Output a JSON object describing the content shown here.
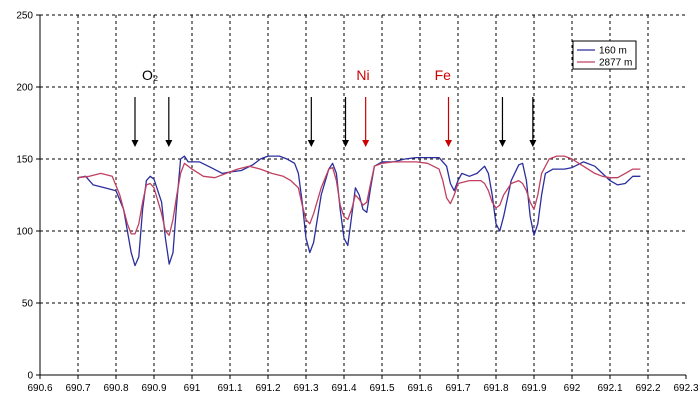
{
  "chart_data": {
    "type": "line",
    "xlim": [
      690.6,
      692.3
    ],
    "ylim": [
      0,
      250
    ],
    "grid": true,
    "legend_position": "top-right",
    "x_ticks": [
      "690.6",
      "690.7",
      "690.8",
      "690.9",
      "691",
      "691.1",
      "691.2",
      "691.3",
      "691.4",
      "691.5",
      "691.6",
      "691.7",
      "691.8",
      "691.9",
      "692",
      "692.1",
      "692.2",
      "692.3"
    ],
    "y_ticks": [
      "0",
      "50",
      "100",
      "150",
      "200",
      "250"
    ],
    "series": [
      {
        "name": "160 m",
        "color": "#2b2f9e",
        "points": [
          [
            690.7,
            137
          ],
          [
            690.72,
            138
          ],
          [
            690.74,
            132
          ],
          [
            690.77,
            130
          ],
          [
            690.8,
            128
          ],
          [
            690.82,
            115
          ],
          [
            690.84,
            85
          ],
          [
            690.85,
            76
          ],
          [
            690.86,
            82
          ],
          [
            690.87,
            115
          ],
          [
            690.88,
            135
          ],
          [
            690.89,
            138
          ],
          [
            690.9,
            136
          ],
          [
            690.92,
            120
          ],
          [
            690.93,
            95
          ],
          [
            690.94,
            77
          ],
          [
            690.95,
            85
          ],
          [
            690.96,
            120
          ],
          [
            690.97,
            150
          ],
          [
            690.98,
            152
          ],
          [
            690.99,
            148
          ],
          [
            691.02,
            148
          ],
          [
            691.05,
            144
          ],
          [
            691.08,
            140
          ],
          [
            691.1,
            141
          ],
          [
            691.13,
            142
          ],
          [
            691.16,
            146
          ],
          [
            691.18,
            150
          ],
          [
            691.2,
            152
          ],
          [
            691.23,
            152
          ],
          [
            691.25,
            150
          ],
          [
            691.27,
            147
          ],
          [
            691.28,
            140
          ],
          [
            691.29,
            120
          ],
          [
            691.3,
            95
          ],
          [
            691.31,
            85
          ],
          [
            691.32,
            92
          ],
          [
            691.34,
            125
          ],
          [
            691.36,
            143
          ],
          [
            691.37,
            147
          ],
          [
            691.38,
            140
          ],
          [
            691.39,
            115
          ],
          [
            691.4,
            95
          ],
          [
            691.41,
            90
          ],
          [
            691.42,
            110
          ],
          [
            691.43,
            130
          ],
          [
            691.44,
            125
          ],
          [
            691.45,
            115
          ],
          [
            691.46,
            113
          ],
          [
            691.47,
            130
          ],
          [
            691.48,
            145
          ],
          [
            691.5,
            148
          ],
          [
            691.53,
            148
          ],
          [
            691.56,
            150
          ],
          [
            691.59,
            151
          ],
          [
            691.62,
            151
          ],
          [
            691.65,
            151
          ],
          [
            691.67,
            145
          ],
          [
            691.68,
            133
          ],
          [
            691.69,
            128
          ],
          [
            691.7,
            135
          ],
          [
            691.71,
            140
          ],
          [
            691.73,
            138
          ],
          [
            691.75,
            140
          ],
          [
            691.77,
            145
          ],
          [
            691.78,
            140
          ],
          [
            691.79,
            125
          ],
          [
            691.8,
            105
          ],
          [
            691.81,
            100
          ],
          [
            691.82,
            110
          ],
          [
            691.84,
            135
          ],
          [
            691.86,
            146
          ],
          [
            691.87,
            147
          ],
          [
            691.88,
            135
          ],
          [
            691.89,
            110
          ],
          [
            691.9,
            97
          ],
          [
            691.91,
            105
          ],
          [
            691.92,
            125
          ],
          [
            691.93,
            140
          ],
          [
            691.95,
            143
          ],
          [
            691.98,
            143
          ],
          [
            692.0,
            144
          ],
          [
            692.03,
            148
          ],
          [
            692.06,
            145
          ],
          [
            692.08,
            140
          ],
          [
            692.1,
            135
          ],
          [
            692.12,
            132
          ],
          [
            692.14,
            133
          ],
          [
            692.16,
            138
          ],
          [
            692.18,
            138
          ]
        ]
      },
      {
        "name": "2877 m",
        "color": "#c04060",
        "points": [
          [
            690.7,
            137
          ],
          [
            690.73,
            138
          ],
          [
            690.76,
            140
          ],
          [
            690.79,
            138
          ],
          [
            690.81,
            125
          ],
          [
            690.83,
            105
          ],
          [
            690.84,
            98
          ],
          [
            690.85,
            98
          ],
          [
            690.86,
            105
          ],
          [
            690.87,
            120
          ],
          [
            690.88,
            132
          ],
          [
            690.89,
            133
          ],
          [
            690.9,
            130
          ],
          [
            690.92,
            112
          ],
          [
            690.93,
            100
          ],
          [
            690.94,
            97
          ],
          [
            690.95,
            108
          ],
          [
            690.96,
            125
          ],
          [
            690.97,
            140
          ],
          [
            690.98,
            147
          ],
          [
            691.0,
            143
          ],
          [
            691.03,
            138
          ],
          [
            691.06,
            137
          ],
          [
            691.09,
            140
          ],
          [
            691.12,
            143
          ],
          [
            691.15,
            145
          ],
          [
            691.18,
            143
          ],
          [
            691.21,
            140
          ],
          [
            691.24,
            138
          ],
          [
            691.26,
            135
          ],
          [
            691.28,
            130
          ],
          [
            691.29,
            118
          ],
          [
            691.3,
            108
          ],
          [
            691.31,
            105
          ],
          [
            691.32,
            112
          ],
          [
            691.34,
            130
          ],
          [
            691.36,
            143
          ],
          [
            691.37,
            144
          ],
          [
            691.38,
            135
          ],
          [
            691.39,
            118
          ],
          [
            691.4,
            110
          ],
          [
            691.41,
            108
          ],
          [
            691.42,
            115
          ],
          [
            691.43,
            125
          ],
          [
            691.44,
            122
          ],
          [
            691.45,
            118
          ],
          [
            691.46,
            120
          ],
          [
            691.47,
            133
          ],
          [
            691.48,
            145
          ],
          [
            691.5,
            147
          ],
          [
            691.53,
            148
          ],
          [
            691.56,
            148
          ],
          [
            691.59,
            148
          ],
          [
            691.62,
            147
          ],
          [
            691.65,
            143
          ],
          [
            691.66,
            135
          ],
          [
            691.67,
            123
          ],
          [
            691.68,
            119
          ],
          [
            691.69,
            125
          ],
          [
            691.7,
            133
          ],
          [
            691.73,
            135
          ],
          [
            691.76,
            135
          ],
          [
            691.77,
            133
          ],
          [
            691.78,
            128
          ],
          [
            691.79,
            120
          ],
          [
            691.8,
            116
          ],
          [
            691.81,
            118
          ],
          [
            691.82,
            125
          ],
          [
            691.84,
            133
          ],
          [
            691.86,
            135
          ],
          [
            691.87,
            133
          ],
          [
            691.88,
            128
          ],
          [
            691.89,
            120
          ],
          [
            691.9,
            115
          ],
          [
            691.91,
            125
          ],
          [
            691.92,
            140
          ],
          [
            691.94,
            150
          ],
          [
            691.96,
            152
          ],
          [
            691.98,
            152
          ],
          [
            692.0,
            150
          ],
          [
            692.03,
            145
          ],
          [
            692.06,
            140
          ],
          [
            692.08,
            138
          ],
          [
            692.1,
            137
          ],
          [
            692.12,
            137
          ],
          [
            692.14,
            140
          ],
          [
            692.16,
            143
          ],
          [
            692.18,
            143
          ]
        ]
      }
    ],
    "annotations": [
      {
        "type": "arrow",
        "x": 690.85,
        "color": "#000000"
      },
      {
        "type": "arrow",
        "x": 690.939,
        "color": "#000000"
      },
      {
        "type": "arrow",
        "x": 691.314,
        "color": "#000000"
      },
      {
        "type": "arrow",
        "x": 691.404,
        "color": "#000000"
      },
      {
        "type": "arrow",
        "x": 691.457,
        "color": "#cc0000"
      },
      {
        "type": "arrow",
        "x": 691.675,
        "color": "#cc0000"
      },
      {
        "type": "arrow",
        "x": 691.817,
        "color": "#000000"
      },
      {
        "type": "arrow",
        "x": 691.897,
        "color": "#000000"
      },
      {
        "type": "label",
        "text": "O₂",
        "x": 690.89,
        "y": 205,
        "color": "#000000"
      },
      {
        "type": "label",
        "text": "Ni",
        "x": 691.45,
        "y": 205,
        "color": "#cc0000"
      },
      {
        "type": "label",
        "text": "Fe",
        "x": 691.66,
        "y": 205,
        "color": "#cc0000"
      }
    ]
  }
}
